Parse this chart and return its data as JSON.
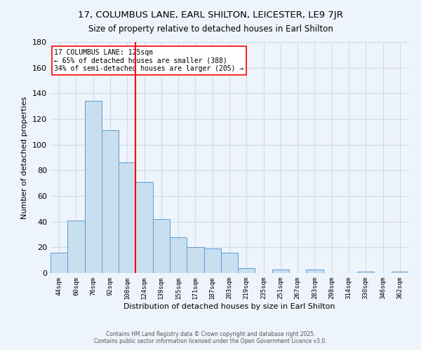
{
  "title": "17, COLUMBUS LANE, EARL SHILTON, LEICESTER, LE9 7JR",
  "subtitle": "Size of property relative to detached houses in Earl Shilton",
  "xlabel": "Distribution of detached houses by size in Earl Shilton",
  "ylabel": "Number of detached properties",
  "bar_labels": [
    "44sqm",
    "60sqm",
    "76sqm",
    "92sqm",
    "108sqm",
    "124sqm",
    "139sqm",
    "155sqm",
    "171sqm",
    "187sqm",
    "203sqm",
    "219sqm",
    "235sqm",
    "251sqm",
    "267sqm",
    "283sqm",
    "298sqm",
    "314sqm",
    "330sqm",
    "346sqm",
    "362sqm"
  ],
  "bar_values": [
    16,
    41,
    134,
    111,
    86,
    71,
    42,
    28,
    20,
    19,
    16,
    4,
    0,
    3,
    0,
    3,
    0,
    0,
    1,
    0,
    1
  ],
  "bar_color": "#c8dff0",
  "bar_edge_color": "#5b9bd5",
  "vline_color": "red",
  "vline_index": 5,
  "annotation_title": "17 COLUMBUS LANE: 125sqm",
  "annotation_line1": "← 65% of detached houses are smaller (388)",
  "annotation_line2": "34% of semi-detached houses are larger (205) →",
  "annotation_box_color": "white",
  "annotation_box_edge": "red",
  "ylim": [
    0,
    180
  ],
  "yticks": [
    0,
    20,
    40,
    60,
    80,
    100,
    120,
    140,
    160,
    180
  ],
  "footnote1": "Contains HM Land Registry data © Crown copyright and database right 2025.",
  "footnote2": "Contains public sector information licensed under the Open Government Licence v3.0.",
  "bg_color": "#eef4fb",
  "grid_color": "#d0dce8"
}
